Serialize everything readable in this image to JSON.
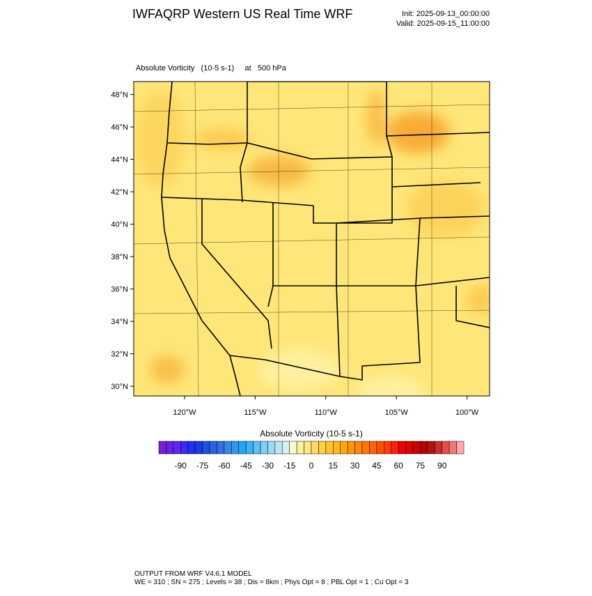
{
  "header": {
    "title": "IWFAQRP Western US Real Time WRF",
    "init": "Init: 2025-09-13_00:00:00",
    "valid": "Valid: 2025-09-15_11:00:00"
  },
  "map": {
    "field": "Absolute Vorticity   (10-5 s-1)     at   500 hPa",
    "lon_range": [
      -123.6,
      -98.4
    ],
    "lat_range": [
      29.4,
      48.8
    ],
    "lat_ticks": [
      {
        "value": 30,
        "label": "30°N"
      },
      {
        "value": 32,
        "label": "32°N"
      },
      {
        "value": 34,
        "label": "34°N"
      },
      {
        "value": 36,
        "label": "36°N"
      },
      {
        "value": 38,
        "label": "38°N"
      },
      {
        "value": 40,
        "label": "40°N"
      },
      {
        "value": 42,
        "label": "42°N"
      },
      {
        "value": 44,
        "label": "44°N"
      },
      {
        "value": 46,
        "label": "46°N"
      },
      {
        "value": 48,
        "label": "48°N"
      }
    ],
    "lon_ticks": [
      {
        "value": -120,
        "label": "120°W"
      },
      {
        "value": -115,
        "label": "115°W"
      },
      {
        "value": -110,
        "label": "110°W"
      },
      {
        "value": -105,
        "label": "105°W"
      },
      {
        "value": -100,
        "label": "100°W"
      }
    ]
  },
  "colorbar": {
    "title": "Absolute Vorticity  (10-5 s-1)",
    "range": [
      -105,
      105
    ],
    "ticks": [
      -90,
      -75,
      -60,
      -45,
      -30,
      -15,
      0,
      15,
      30,
      45,
      60,
      75,
      90
    ],
    "colors": [
      "#7a1fd8",
      "#6a22e8",
      "#5a28f0",
      "#3a2cf5",
      "#1e2ef5",
      "#1a3ce8",
      "#2250e0",
      "#2a62e0",
      "#3272e0",
      "#3a84e6",
      "#2e98ea",
      "#1eaaf0",
      "#36b6f2",
      "#5cc4f4",
      "#80cff2",
      "#a0daf0",
      "#bce4f2",
      "#d6eef6",
      "#fff8c8",
      "#fff0a0",
      "#ffe680",
      "#ffdc60",
      "#ffd040",
      "#ffc428",
      "#ffb818",
      "#ffa800",
      "#ff9800",
      "#ff8a00",
      "#ff7800",
      "#ff6400",
      "#ff5000",
      "#ff3c00",
      "#ff2000",
      "#f00000",
      "#e00000",
      "#cc0000",
      "#b80000",
      "#b41010",
      "#c83030",
      "#e05050",
      "#f07878",
      "#ffa8a8"
    ]
  },
  "footer": {
    "line1": "OUTPUT FROM WRF V4.6.1 MODEL",
    "line2": "WE = 310 ; SN = 275 ; Levels = 38 ; Dis = 8km ; Phys Opt = 8 ; PBL Opt = 1 ; Cu Opt = 3"
  }
}
